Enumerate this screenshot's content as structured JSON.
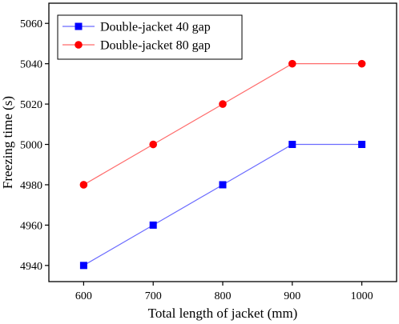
{
  "chart_data": {
    "type": "line",
    "title": "",
    "xlabel": "Total length of jacket (mm)",
    "ylabel": "Freezing time (s)",
    "x": [
      600,
      700,
      800,
      900,
      1000
    ],
    "xticks": [
      600,
      700,
      800,
      900,
      1000
    ],
    "yticks": [
      4940,
      4960,
      4980,
      5000,
      5020,
      5040,
      5060
    ],
    "xlim": [
      550,
      1050
    ],
    "ylim": [
      4932,
      5070
    ],
    "grid": false,
    "legend_position": "top-left",
    "series": [
      {
        "name": "Double-jacket 40 gap",
        "values": [
          4940,
          4960,
          4980,
          5000,
          5000
        ],
        "color": "#0000ff",
        "line_color": "#6b6bff",
        "marker": "square"
      },
      {
        "name": "Double-jacket 80 gap",
        "values": [
          4980,
          5000,
          5020,
          5040,
          5040
        ],
        "color": "#ff0000",
        "line_color": "#ff6b6b",
        "marker": "circle"
      }
    ]
  }
}
